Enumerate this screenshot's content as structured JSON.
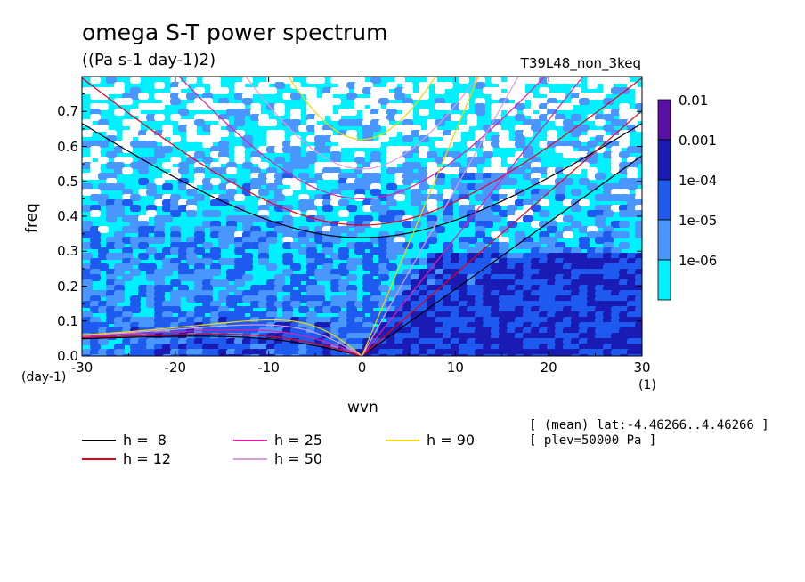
{
  "chart_data": {
    "type": "heatmap",
    "title": "omega S-T power spectrum",
    "subtitle": "((Pa s-1 day-1)2)",
    "run_id": "T39L48_non_3keq",
    "xlabel": "wvn",
    "ylabel": "freq",
    "x_unit": "(1)",
    "y_unit": "(day-1)",
    "xlim": [
      -30,
      30
    ],
    "ylim": [
      0,
      0.8
    ],
    "x_ticks": [
      "-30",
      "-20",
      "-10",
      "0",
      "10",
      "20",
      "30"
    ],
    "y_ticks": [
      "0.0",
      "0.1",
      "0.2",
      "0.3",
      "0.4",
      "0.5",
      "0.6",
      "0.7"
    ],
    "colorbar": {
      "levels": [
        "0.01",
        "0.001",
        "1e-04",
        "1e-05",
        "1e-06"
      ],
      "colors": [
        "#5a0fa8",
        "#1a1ab4",
        "#1e5af0",
        "#4a96ff",
        "#00f0ff"
      ]
    },
    "background_colors": {
      "low": "#ffffff",
      "level1": "#00f0ff",
      "level2": "#4a96ff",
      "level3": "#1e5af0",
      "level4": "#1a1ab4"
    },
    "dispersion_curves": [
      {
        "name": "h =  8",
        "color": "#000000"
      },
      {
        "name": "h = 12",
        "color": "#e8001a"
      },
      {
        "name": "h = 25",
        "color": "#e61aa8"
      },
      {
        "name": "h = 50",
        "color": "#d89ee0"
      },
      {
        "name": "h = 90",
        "color": "#f0d800"
      }
    ],
    "annotations": [
      "[ (mean) lat:-4.46266..4.46266 ]",
      "[ plev=50000 Pa ]"
    ]
  }
}
